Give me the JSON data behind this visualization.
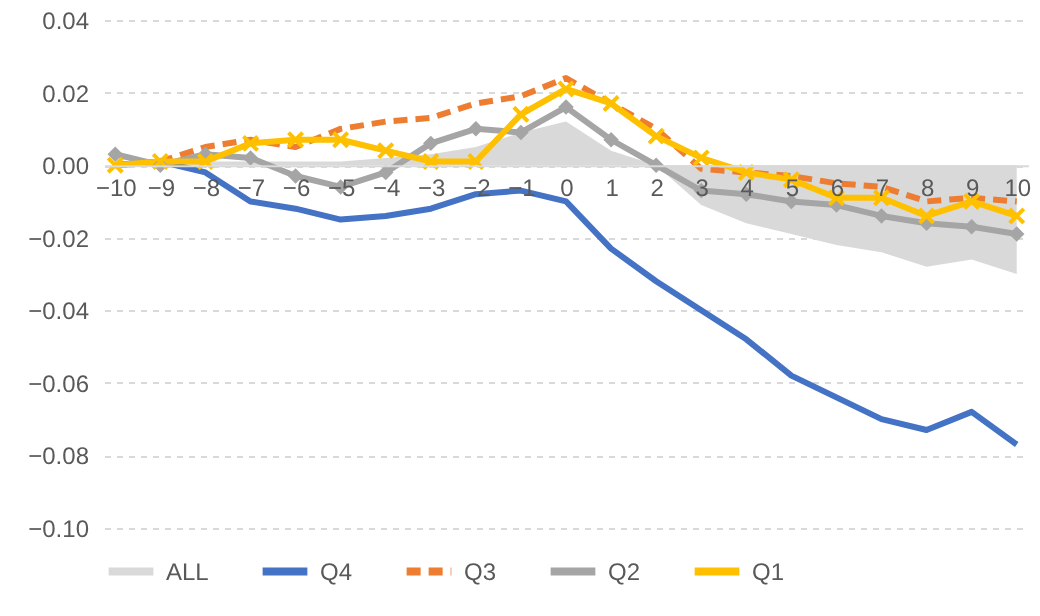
{
  "chart_data": {
    "type": "line",
    "categories": [
      "−10",
      "−9",
      "−8",
      "−7",
      "−6",
      "−5",
      "−4",
      "−3",
      "−2",
      "−1",
      "0",
      "1",
      "2",
      "3",
      "4",
      "5",
      "6",
      "7",
      "8",
      "9",
      "10"
    ],
    "series": [
      {
        "name": "ALL",
        "type": "area",
        "color": "#d9d9d9",
        "values": [
          0.001,
          0.001,
          0.001,
          0.001,
          0.001,
          0.001,
          0.002,
          0.003,
          0.005,
          0.009,
          0.012,
          0.004,
          0.0,
          -0.011,
          -0.016,
          -0.019,
          -0.022,
          -0.024,
          -0.028,
          -0.026,
          -0.03
        ]
      },
      {
        "name": "Q4",
        "color": "#4472c4",
        "line_style": "solid",
        "marker": "none",
        "values": [
          0.0,
          0.001,
          -0.002,
          -0.01,
          -0.012,
          -0.015,
          -0.014,
          -0.012,
          -0.008,
          -0.007,
          -0.01,
          -0.023,
          -0.032,
          -0.04,
          -0.048,
          -0.058,
          -0.064,
          -0.07,
          -0.073,
          -0.068,
          -0.077
        ]
      },
      {
        "name": "Q3",
        "color": "#ed7d31",
        "line_style": "dashed",
        "marker": "none",
        "values": [
          0.0,
          0.001,
          0.005,
          0.007,
          0.005,
          0.01,
          0.012,
          0.013,
          0.017,
          0.019,
          0.024,
          0.017,
          0.01,
          -0.001,
          -0.002,
          -0.003,
          -0.005,
          -0.006,
          -0.01,
          -0.009,
          -0.01
        ]
      },
      {
        "name": "Q2",
        "color": "#a5a5a5",
        "line_style": "solid",
        "marker": "diamond",
        "values": [
          0.003,
          0.0,
          0.003,
          0.002,
          -0.003,
          -0.006,
          -0.002,
          0.006,
          0.01,
          0.009,
          0.016,
          0.007,
          0.0,
          -0.007,
          -0.008,
          -0.01,
          -0.011,
          -0.014,
          -0.016,
          -0.017,
          -0.019
        ]
      },
      {
        "name": "Q1",
        "color": "#ffc000",
        "line_style": "solid",
        "marker": "cross",
        "values": [
          0.0,
          0.001,
          0.001,
          0.006,
          0.007,
          0.007,
          0.004,
          0.001,
          0.001,
          0.014,
          0.021,
          0.017,
          0.008,
          0.002,
          -0.002,
          -0.004,
          -0.009,
          -0.009,
          -0.014,
          -0.01,
          -0.014
        ]
      }
    ],
    "ylim": [
      -0.1,
      0.04
    ],
    "yticks": [
      {
        "value": 0.04,
        "label": "0.04"
      },
      {
        "value": 0.02,
        "label": "0.02"
      },
      {
        "value": 0,
        "label": "0.00"
      },
      {
        "value": -0.02,
        "label": "−0.02"
      },
      {
        "value": -0.04,
        "label": "−0.04"
      },
      {
        "value": -0.06,
        "label": "−0.06"
      },
      {
        "value": -0.08,
        "label": "−0.08"
      },
      {
        "value": -0.1,
        "label": "−0.10"
      }
    ],
    "grid": "y",
    "legend": "bottom"
  }
}
